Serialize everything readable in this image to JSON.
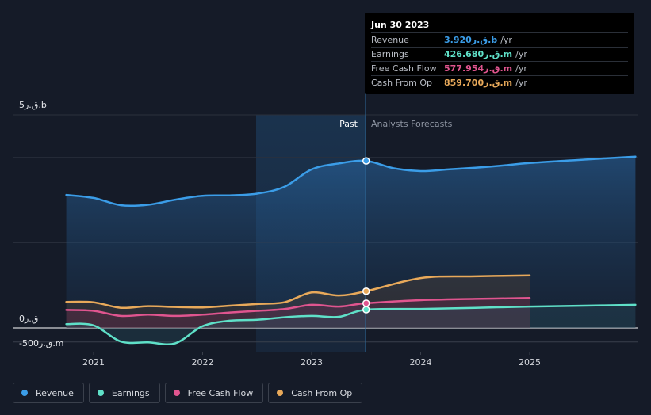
{
  "tooltip": {
    "date": "Jun 30 2023",
    "rows": [
      {
        "label": "Revenue",
        "value": "3.920ق.ر.b",
        "unit": "/yr",
        "color": "#3b9de8"
      },
      {
        "label": "Earnings",
        "value": "426.680ق.ر.m",
        "unit": "/yr",
        "color": "#5fe0c8"
      },
      {
        "label": "Free Cash Flow",
        "value": "577.954ق.ر.m",
        "unit": "/yr",
        "color": "#e0558f"
      },
      {
        "label": "Cash From Op",
        "value": "859.700ق.ر.m",
        "unit": "/yr",
        "color": "#e8a95a"
      }
    ]
  },
  "section_labels": {
    "past": "Past",
    "forecast": "Analysts Forecasts"
  },
  "legend": [
    {
      "label": "Revenue",
      "color": "#3b9de8"
    },
    {
      "label": "Earnings",
      "color": "#5fe0c8"
    },
    {
      "label": "Free Cash Flow",
      "color": "#e0558f"
    },
    {
      "label": "Cash From Op",
      "color": "#e8a95a"
    }
  ],
  "chart_data": {
    "type": "line",
    "title": "",
    "x_unit": "year",
    "xlim": [
      2020.5,
      2025.97
    ],
    "ylim": [
      -500,
      5000
    ],
    "y_tick_labels": [
      {
        "value": 5000,
        "label": "5ق.ر.b"
      },
      {
        "value": 0,
        "label": "0ق.ر"
      },
      {
        "value": -500,
        "label": "-500ق.ر.m"
      }
    ],
    "x_ticks": [
      {
        "value": 2021,
        "label": "2021"
      },
      {
        "value": 2022,
        "label": "2022"
      },
      {
        "value": 2023,
        "label": "2023"
      },
      {
        "value": 2024,
        "label": "2024"
      },
      {
        "value": 2025,
        "label": "2025"
      }
    ],
    "gridlines": [
      5000,
      4000,
      2000
    ],
    "past_start": 2022.5,
    "tooltip_x": 2023.5,
    "series": [
      {
        "name": "Revenue",
        "color": "#3b9de8",
        "x": [
          2020.75,
          2021.0,
          2021.25,
          2021.5,
          2021.75,
          2022.0,
          2022.25,
          2022.5,
          2022.75,
          2023.0,
          2023.25,
          2023.5,
          2023.75,
          2024.0,
          2024.25,
          2024.5,
          2024.75,
          2025.0,
          2025.5,
          2025.97
        ],
        "y": [
          3120,
          3050,
          2880,
          2890,
          3010,
          3100,
          3110,
          3150,
          3310,
          3720,
          3860,
          3920,
          3750,
          3680,
          3720,
          3760,
          3810,
          3870,
          3950,
          4020
        ]
      },
      {
        "name": "Earnings",
        "color": "#5fe0c8",
        "x": [
          2020.75,
          2021.0,
          2021.25,
          2021.5,
          2021.75,
          2022.0,
          2022.25,
          2022.5,
          2022.75,
          2023.0,
          2023.25,
          2023.5,
          2024.0,
          2024.5,
          2025.0,
          2025.5,
          2025.97
        ],
        "y": [
          90,
          60,
          -320,
          -340,
          -360,
          40,
          170,
          190,
          250,
          280,
          260,
          427,
          445,
          470,
          500,
          520,
          540
        ]
      },
      {
        "name": "Free Cash Flow",
        "color": "#e0558f",
        "x": [
          2020.75,
          2021.0,
          2021.25,
          2021.5,
          2021.75,
          2022.0,
          2022.25,
          2022.5,
          2022.75,
          2023.0,
          2023.25,
          2023.5,
          2024.0,
          2024.5,
          2025.0
        ],
        "y": [
          420,
          400,
          280,
          310,
          280,
          310,
          360,
          400,
          440,
          540,
          500,
          578,
          650,
          680,
          700
        ]
      },
      {
        "name": "Cash From Op",
        "color": "#e8a95a",
        "x": [
          2020.75,
          2021.0,
          2021.25,
          2021.5,
          2021.75,
          2022.0,
          2022.25,
          2022.5,
          2022.75,
          2023.0,
          2023.25,
          2023.5,
          2024.0,
          2024.5,
          2025.0
        ],
        "y": [
          610,
          600,
          470,
          510,
          490,
          480,
          520,
          560,
          600,
          830,
          760,
          860,
          1170,
          1210,
          1230
        ]
      }
    ]
  }
}
